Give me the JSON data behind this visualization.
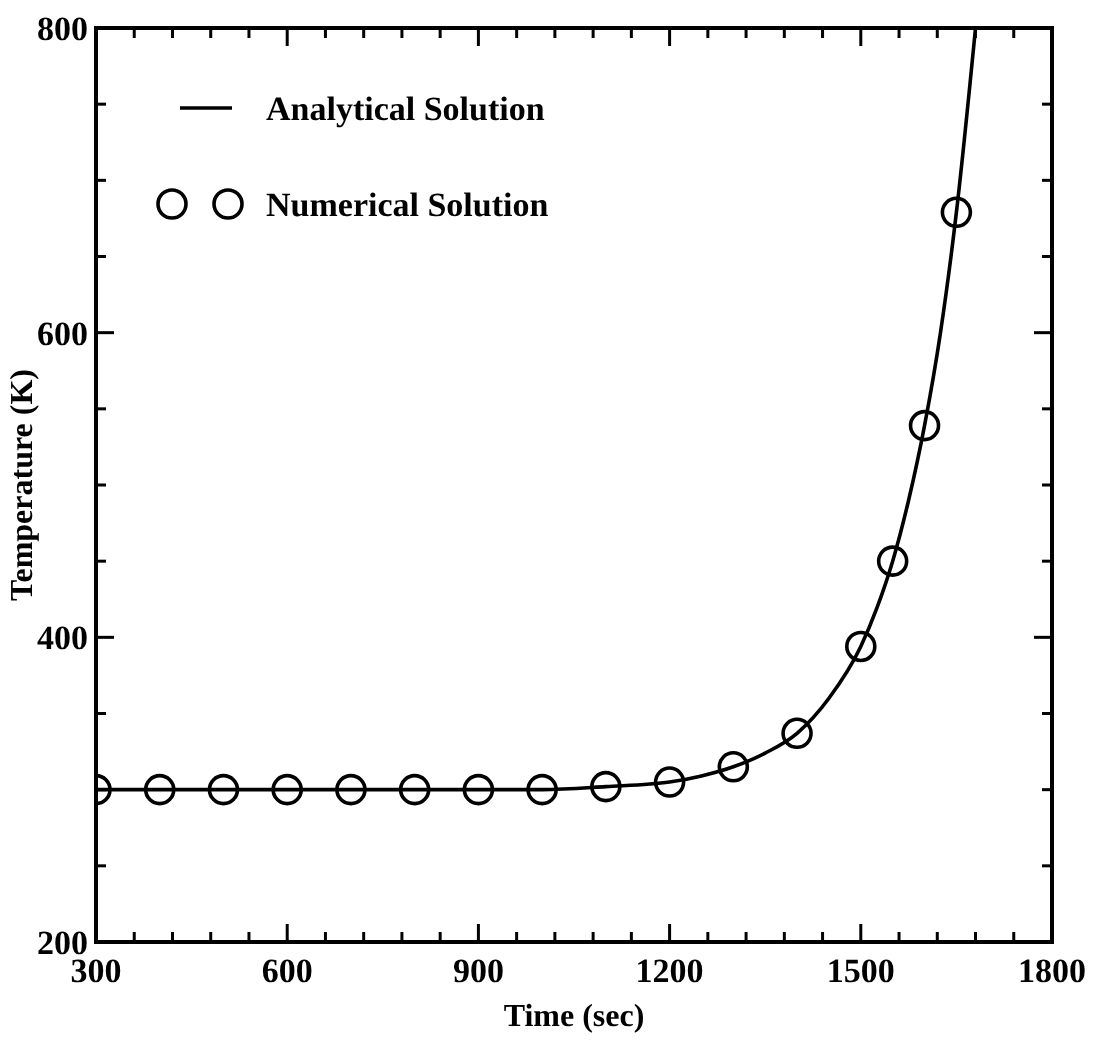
{
  "chart_data": {
    "type": "line",
    "xlabel": "Time (sec)",
    "ylabel": "Temperature (K)",
    "xlim": [
      300,
      1800
    ],
    "ylim": [
      200,
      800
    ],
    "xticks": [
      300,
      {
        "value": 360,
        "label": null
      },
      {
        "value": 420,
        "label": null
      },
      {
        "value": 480,
        "label": null
      },
      {
        "value": 540,
        "label": null
      },
      600,
      {
        "value": 660,
        "label": null
      },
      {
        "value": 720,
        "label": null
      },
      {
        "value": 780,
        "label": null
      },
      {
        "value": 840,
        "label": null
      },
      900,
      {
        "value": 960,
        "label": null
      },
      {
        "value": 1020,
        "label": null
      },
      {
        "value": 1080,
        "label": null
      },
      {
        "value": 1140,
        "label": null
      },
      1200,
      {
        "value": 1260,
        "label": null
      },
      {
        "value": 1320,
        "label": null
      },
      {
        "value": 1380,
        "label": null
      },
      {
        "value": 1440,
        "label": null
      },
      1500,
      {
        "value": 1560,
        "label": null
      },
      {
        "value": 1620,
        "label": null
      },
      {
        "value": 1680,
        "label": null
      },
      {
        "value": 1740,
        "label": null
      },
      1800
    ],
    "yticks": [
      200,
      {
        "value": 250,
        "label": null
      },
      {
        "value": 300,
        "label": null
      },
      {
        "value": 350,
        "label": null
      },
      400,
      {
        "value": 450,
        "label": null
      },
      {
        "value": 500,
        "label": null
      },
      {
        "value": 550,
        "label": null
      },
      600,
      {
        "value": 650,
        "label": null
      },
      {
        "value": 700,
        "label": null
      },
      {
        "value": 750,
        "label": null
      },
      800
    ],
    "grid": false,
    "legend": "top left",
    "series": [
      {
        "name": "Analytical Solution",
        "color": "#000000",
        "marker": "none",
        "line_style": "solid",
        "x": [
          300,
          600,
          900,
          1000,
          1100,
          1200,
          1250,
          1300,
          1350,
          1400,
          1450,
          1500,
          1525,
          1550,
          1575,
          1600,
          1625,
          1650,
          1680
        ],
        "values": [
          300,
          300,
          300,
          300,
          302,
          305,
          309,
          315,
          324,
          337,
          360,
          394,
          419,
          450,
          490,
          539,
          600,
          679,
          800
        ]
      },
      {
        "name": "Numerical Solution",
        "type": "scatter",
        "color": "#000000",
        "marker": "circle",
        "x": [
          300,
          400,
          500,
          600,
          700,
          800,
          900,
          1000,
          1100,
          1200,
          1300,
          1400,
          1500,
          1550,
          1600,
          1650
        ],
        "values": [
          300,
          300,
          300,
          300,
          300,
          300,
          300,
          300,
          302,
          305,
          315,
          337,
          394,
          450,
          539,
          679
        ]
      }
    ]
  }
}
